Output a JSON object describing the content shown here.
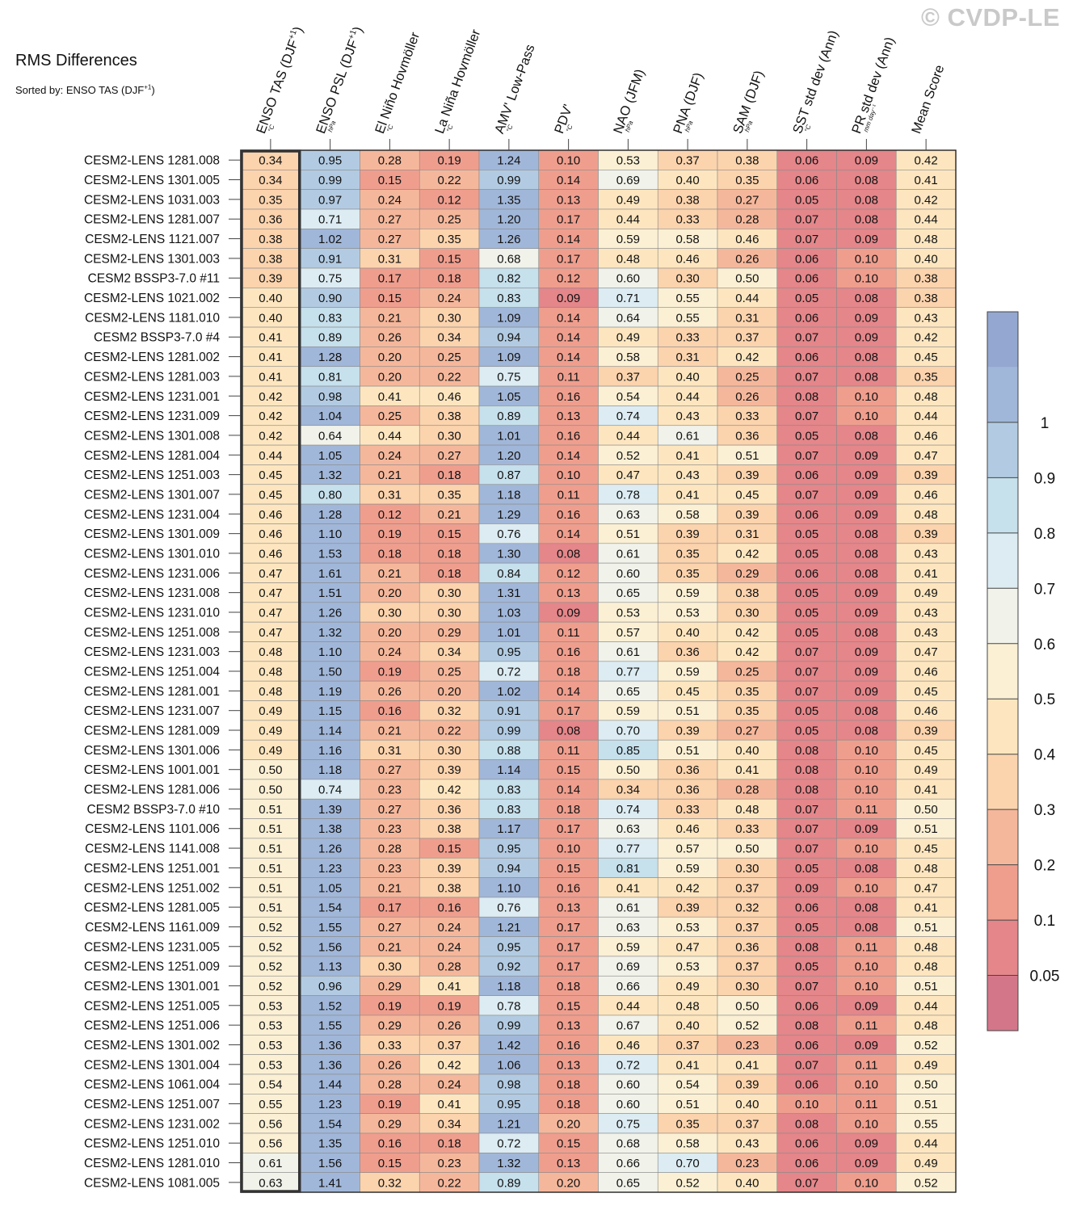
{
  "watermark": "© CVDP-LE",
  "title": "RMS Differences",
  "sorted_by": {
    "prefix": "Sorted by: ENSO TAS (DJF",
    "sup": "+1",
    "suffix": ")"
  },
  "colors": {
    "highlight_border": "#333333",
    "grid": "#8a8a8a",
    "scale": [
      "#d4768a",
      "#e4868a",
      "#ef9e8e",
      "#f5b79b",
      "#fbd3ad",
      "#fde6bf",
      "#fbf0d4",
      "#f1f2ea",
      "#dcecf2",
      "#c6e0ec",
      "#b2cbe2",
      "#a1b7d9",
      "#93a7d0"
    ]
  },
  "chart_data": {
    "type": "heatmap",
    "title": "RMS Differences",
    "sorted_by": "ENSO TAS (DJF+1)",
    "highlighted_column": 0,
    "columns": [
      {
        "name": "ENSO TAS (DJF",
        "sup": "+1",
        "suffix": ")",
        "unit": "°C"
      },
      {
        "name": "ENSO PSL (DJF",
        "sup": "+1",
        "suffix": ")",
        "unit": "hPa"
      },
      {
        "name": "El Niño Hovmöller",
        "sup": "",
        "suffix": "",
        "unit": "°C"
      },
      {
        "name": "La Niña Hovmöller",
        "sup": "",
        "suffix": "",
        "unit": "°C"
      },
      {
        "name": "AMV' Low-Pass",
        "sup": "",
        "suffix": "",
        "unit": "°C"
      },
      {
        "name": "PDV'",
        "sup": "",
        "suffix": "",
        "unit": "°C"
      },
      {
        "name": "NAO (JFM)",
        "sup": "",
        "suffix": "",
        "unit": "hPa"
      },
      {
        "name": "PNA (DJF)",
        "sup": "",
        "suffix": "",
        "unit": "hPa"
      },
      {
        "name": "SAM (DJF)",
        "sup": "",
        "suffix": "",
        "unit": "hPa"
      },
      {
        "name": "SST std dev (Ann)",
        "sup": "",
        "suffix": "",
        "unit": "°C"
      },
      {
        "name": "PR std dev (Ann)",
        "sup": "",
        "suffix": "",
        "unit": "mm day⁻¹"
      },
      {
        "name": "Mean Score",
        "sup": "",
        "suffix": "",
        "unit": ""
      }
    ],
    "rows": [
      {
        "label": "CESM2-LENS 1281.008",
        "values": [
          0.34,
          0.95,
          0.28,
          0.19,
          1.24,
          0.1,
          0.53,
          0.37,
          0.38,
          0.06,
          0.09,
          0.42
        ]
      },
      {
        "label": "CESM2-LENS 1301.005",
        "values": [
          0.34,
          0.99,
          0.15,
          0.22,
          0.99,
          0.14,
          0.69,
          0.4,
          0.35,
          0.06,
          0.08,
          0.41
        ]
      },
      {
        "label": "CESM2-LENS 1031.003",
        "values": [
          0.35,
          0.97,
          0.24,
          0.12,
          1.35,
          0.13,
          0.49,
          0.38,
          0.27,
          0.05,
          0.08,
          0.42
        ]
      },
      {
        "label": "CESM2-LENS 1281.007",
        "values": [
          0.36,
          0.71,
          0.27,
          0.25,
          1.2,
          0.17,
          0.44,
          0.33,
          0.28,
          0.07,
          0.08,
          0.44
        ]
      },
      {
        "label": "CESM2-LENS 1121.007",
        "values": [
          0.38,
          1.02,
          0.27,
          0.35,
          1.26,
          0.14,
          0.59,
          0.58,
          0.46,
          0.07,
          0.09,
          0.48
        ]
      },
      {
        "label": "CESM2-LENS 1301.003",
        "values": [
          0.38,
          0.91,
          0.31,
          0.15,
          0.68,
          0.17,
          0.48,
          0.46,
          0.26,
          0.06,
          0.1,
          0.4
        ]
      },
      {
        "label": "CESM2 BSSP3-7.0 #11",
        "values": [
          0.39,
          0.75,
          0.17,
          0.18,
          0.82,
          0.12,
          0.6,
          0.3,
          0.5,
          0.06,
          0.1,
          0.38
        ]
      },
      {
        "label": "CESM2-LENS 1021.002",
        "values": [
          0.4,
          0.9,
          0.15,
          0.24,
          0.83,
          0.09,
          0.71,
          0.55,
          0.44,
          0.05,
          0.08,
          0.38
        ]
      },
      {
        "label": "CESM2-LENS 1181.010",
        "values": [
          0.4,
          0.83,
          0.21,
          0.3,
          1.09,
          0.14,
          0.64,
          0.55,
          0.31,
          0.06,
          0.09,
          0.43
        ]
      },
      {
        "label": "CESM2 BSSP3-7.0 #4",
        "values": [
          0.41,
          0.89,
          0.26,
          0.34,
          0.94,
          0.14,
          0.49,
          0.33,
          0.37,
          0.07,
          0.09,
          0.42
        ]
      },
      {
        "label": "CESM2-LENS 1281.002",
        "values": [
          0.41,
          1.28,
          0.2,
          0.25,
          1.09,
          0.14,
          0.58,
          0.31,
          0.42,
          0.06,
          0.08,
          0.45
        ]
      },
      {
        "label": "CESM2-LENS 1281.003",
        "values": [
          0.41,
          0.81,
          0.2,
          0.22,
          0.75,
          0.11,
          0.37,
          0.4,
          0.25,
          0.07,
          0.08,
          0.35
        ]
      },
      {
        "label": "CESM2-LENS 1231.001",
        "values": [
          0.42,
          0.98,
          0.41,
          0.46,
          1.05,
          0.16,
          0.54,
          0.44,
          0.26,
          0.08,
          0.1,
          0.48
        ]
      },
      {
        "label": "CESM2-LENS 1231.009",
        "values": [
          0.42,
          1.04,
          0.25,
          0.38,
          0.89,
          0.13,
          0.74,
          0.43,
          0.33,
          0.07,
          0.1,
          0.44
        ]
      },
      {
        "label": "CESM2-LENS 1301.008",
        "values": [
          0.42,
          0.64,
          0.44,
          0.3,
          1.01,
          0.16,
          0.44,
          0.61,
          0.36,
          0.05,
          0.08,
          0.46
        ]
      },
      {
        "label": "CESM2-LENS 1281.004",
        "values": [
          0.44,
          1.05,
          0.24,
          0.27,
          1.2,
          0.14,
          0.52,
          0.41,
          0.51,
          0.07,
          0.09,
          0.47
        ]
      },
      {
        "label": "CESM2-LENS 1251.003",
        "values": [
          0.45,
          1.32,
          0.21,
          0.18,
          0.87,
          0.1,
          0.47,
          0.43,
          0.39,
          0.06,
          0.09,
          0.39
        ]
      },
      {
        "label": "CESM2-LENS 1301.007",
        "values": [
          0.45,
          0.8,
          0.31,
          0.35,
          1.18,
          0.11,
          0.78,
          0.41,
          0.45,
          0.07,
          0.09,
          0.46
        ]
      },
      {
        "label": "CESM2-LENS 1231.004",
        "values": [
          0.46,
          1.28,
          0.12,
          0.21,
          1.29,
          0.16,
          0.63,
          0.58,
          0.39,
          0.06,
          0.09,
          0.48
        ]
      },
      {
        "label": "CESM2-LENS 1301.009",
        "values": [
          0.46,
          1.1,
          0.19,
          0.15,
          0.76,
          0.14,
          0.51,
          0.39,
          0.31,
          0.05,
          0.08,
          0.39
        ]
      },
      {
        "label": "CESM2-LENS 1301.010",
        "values": [
          0.46,
          1.53,
          0.18,
          0.18,
          1.3,
          0.08,
          0.61,
          0.35,
          0.42,
          0.05,
          0.08,
          0.43
        ]
      },
      {
        "label": "CESM2-LENS 1231.006",
        "values": [
          0.47,
          1.61,
          0.21,
          0.18,
          0.84,
          0.12,
          0.6,
          0.35,
          0.29,
          0.06,
          0.08,
          0.41
        ]
      },
      {
        "label": "CESM2-LENS 1231.008",
        "values": [
          0.47,
          1.51,
          0.2,
          0.3,
          1.31,
          0.13,
          0.65,
          0.59,
          0.38,
          0.05,
          0.09,
          0.49
        ]
      },
      {
        "label": "CESM2-LENS 1231.010",
        "values": [
          0.47,
          1.26,
          0.3,
          0.3,
          1.03,
          0.09,
          0.53,
          0.53,
          0.3,
          0.05,
          0.09,
          0.43
        ]
      },
      {
        "label": "CESM2-LENS 1251.008",
        "values": [
          0.47,
          1.32,
          0.2,
          0.29,
          1.01,
          0.11,
          0.57,
          0.4,
          0.42,
          0.05,
          0.08,
          0.43
        ]
      },
      {
        "label": "CESM2-LENS 1231.003",
        "values": [
          0.48,
          1.1,
          0.24,
          0.34,
          0.95,
          0.16,
          0.61,
          0.36,
          0.42,
          0.07,
          0.09,
          0.47
        ]
      },
      {
        "label": "CESM2-LENS 1251.004",
        "values": [
          0.48,
          1.5,
          0.19,
          0.25,
          0.72,
          0.18,
          0.77,
          0.59,
          0.25,
          0.07,
          0.09,
          0.46
        ]
      },
      {
        "label": "CESM2-LENS 1281.001",
        "values": [
          0.48,
          1.19,
          0.26,
          0.2,
          1.02,
          0.14,
          0.65,
          0.45,
          0.35,
          0.07,
          0.09,
          0.45
        ]
      },
      {
        "label": "CESM2-LENS 1231.007",
        "values": [
          0.49,
          1.15,
          0.16,
          0.32,
          0.91,
          0.17,
          0.59,
          0.51,
          0.35,
          0.05,
          0.08,
          0.46
        ]
      },
      {
        "label": "CESM2-LENS 1281.009",
        "values": [
          0.49,
          1.14,
          0.21,
          0.22,
          0.99,
          0.08,
          0.7,
          0.39,
          0.27,
          0.05,
          0.08,
          0.39
        ]
      },
      {
        "label": "CESM2-LENS 1301.006",
        "values": [
          0.49,
          1.16,
          0.31,
          0.3,
          0.88,
          0.11,
          0.85,
          0.51,
          0.4,
          0.08,
          0.1,
          0.45
        ]
      },
      {
        "label": "CESM2-LENS 1001.001",
        "values": [
          0.5,
          1.18,
          0.27,
          0.39,
          1.14,
          0.15,
          0.5,
          0.36,
          0.41,
          0.08,
          0.1,
          0.49
        ]
      },
      {
        "label": "CESM2-LENS 1281.006",
        "values": [
          0.5,
          0.74,
          0.23,
          0.42,
          0.83,
          0.14,
          0.34,
          0.36,
          0.28,
          0.08,
          0.1,
          0.41
        ]
      },
      {
        "label": "CESM2 BSSP3-7.0 #10",
        "values": [
          0.51,
          1.39,
          0.27,
          0.36,
          0.83,
          0.18,
          0.74,
          0.33,
          0.48,
          0.07,
          0.11,
          0.5
        ]
      },
      {
        "label": "CESM2-LENS 1101.006",
        "values": [
          0.51,
          1.38,
          0.23,
          0.38,
          1.17,
          0.17,
          0.63,
          0.46,
          0.33,
          0.07,
          0.09,
          0.51
        ]
      },
      {
        "label": "CESM2-LENS 1141.008",
        "values": [
          0.51,
          1.26,
          0.28,
          0.15,
          0.95,
          0.1,
          0.77,
          0.57,
          0.5,
          0.07,
          0.1,
          0.45
        ]
      },
      {
        "label": "CESM2-LENS 1251.001",
        "values": [
          0.51,
          1.23,
          0.23,
          0.39,
          0.94,
          0.15,
          0.81,
          0.59,
          0.3,
          0.05,
          0.08,
          0.48
        ]
      },
      {
        "label": "CESM2-LENS 1251.002",
        "values": [
          0.51,
          1.05,
          0.21,
          0.38,
          1.1,
          0.16,
          0.41,
          0.42,
          0.37,
          0.09,
          0.1,
          0.47
        ]
      },
      {
        "label": "CESM2-LENS 1281.005",
        "values": [
          0.51,
          1.54,
          0.17,
          0.16,
          0.76,
          0.13,
          0.61,
          0.39,
          0.32,
          0.06,
          0.08,
          0.41
        ]
      },
      {
        "label": "CESM2-LENS 1161.009",
        "values": [
          0.52,
          1.55,
          0.27,
          0.24,
          1.21,
          0.17,
          0.63,
          0.53,
          0.37,
          0.05,
          0.08,
          0.51
        ]
      },
      {
        "label": "CESM2-LENS 1231.005",
        "values": [
          0.52,
          1.56,
          0.21,
          0.24,
          0.95,
          0.17,
          0.59,
          0.47,
          0.36,
          0.08,
          0.11,
          0.48
        ]
      },
      {
        "label": "CESM2-LENS 1251.009",
        "values": [
          0.52,
          1.13,
          0.3,
          0.28,
          0.92,
          0.17,
          0.69,
          0.53,
          0.37,
          0.05,
          0.1,
          0.48
        ]
      },
      {
        "label": "CESM2-LENS 1301.001",
        "values": [
          0.52,
          0.96,
          0.29,
          0.41,
          1.18,
          0.18,
          0.66,
          0.49,
          0.3,
          0.07,
          0.1,
          0.51
        ]
      },
      {
        "label": "CESM2-LENS 1251.005",
        "values": [
          0.53,
          1.52,
          0.19,
          0.19,
          0.78,
          0.15,
          0.44,
          0.48,
          0.5,
          0.06,
          0.09,
          0.44
        ]
      },
      {
        "label": "CESM2-LENS 1251.006",
        "values": [
          0.53,
          1.55,
          0.29,
          0.26,
          0.99,
          0.13,
          0.67,
          0.4,
          0.52,
          0.08,
          0.11,
          0.48
        ]
      },
      {
        "label": "CESM2-LENS 1301.002",
        "values": [
          0.53,
          1.36,
          0.33,
          0.37,
          1.42,
          0.16,
          0.46,
          0.37,
          0.23,
          0.06,
          0.09,
          0.52
        ]
      },
      {
        "label": "CESM2-LENS 1301.004",
        "values": [
          0.53,
          1.36,
          0.26,
          0.42,
          1.06,
          0.13,
          0.72,
          0.41,
          0.41,
          0.07,
          0.11,
          0.49
        ]
      },
      {
        "label": "CESM2-LENS 1061.004",
        "values": [
          0.54,
          1.44,
          0.28,
          0.24,
          0.98,
          0.18,
          0.6,
          0.54,
          0.39,
          0.06,
          0.1,
          0.5
        ]
      },
      {
        "label": "CESM2-LENS 1251.007",
        "values": [
          0.55,
          1.23,
          0.19,
          0.41,
          0.95,
          0.18,
          0.6,
          0.51,
          0.4,
          0.1,
          0.11,
          0.51
        ]
      },
      {
        "label": "CESM2-LENS 1231.002",
        "values": [
          0.56,
          1.54,
          0.29,
          0.34,
          1.21,
          0.2,
          0.75,
          0.35,
          0.37,
          0.08,
          0.1,
          0.55
        ]
      },
      {
        "label": "CESM2-LENS 1251.010",
        "values": [
          0.56,
          1.35,
          0.16,
          0.18,
          0.72,
          0.15,
          0.68,
          0.58,
          0.43,
          0.06,
          0.09,
          0.44
        ]
      },
      {
        "label": "CESM2-LENS 1281.010",
        "values": [
          0.61,
          1.56,
          0.15,
          0.23,
          1.32,
          0.13,
          0.66,
          0.7,
          0.23,
          0.06,
          0.09,
          0.49
        ]
      },
      {
        "label": "CESM2-LENS 1081.005",
        "values": [
          0.63,
          1.41,
          0.32,
          0.22,
          0.89,
          0.2,
          0.65,
          0.52,
          0.4,
          0.07,
          0.1,
          0.52
        ]
      }
    ],
    "colorbar": {
      "thresholds": [
        0.05,
        0.1,
        0.2,
        0.3,
        0.4,
        0.5,
        0.6,
        0.7,
        0.8,
        0.9,
        1
      ],
      "labels": [
        "0.05",
        "0.1",
        "0.2",
        "0.3",
        "0.4",
        "0.5",
        "0.6",
        "0.7",
        "0.8",
        "0.9",
        "1"
      ]
    }
  }
}
